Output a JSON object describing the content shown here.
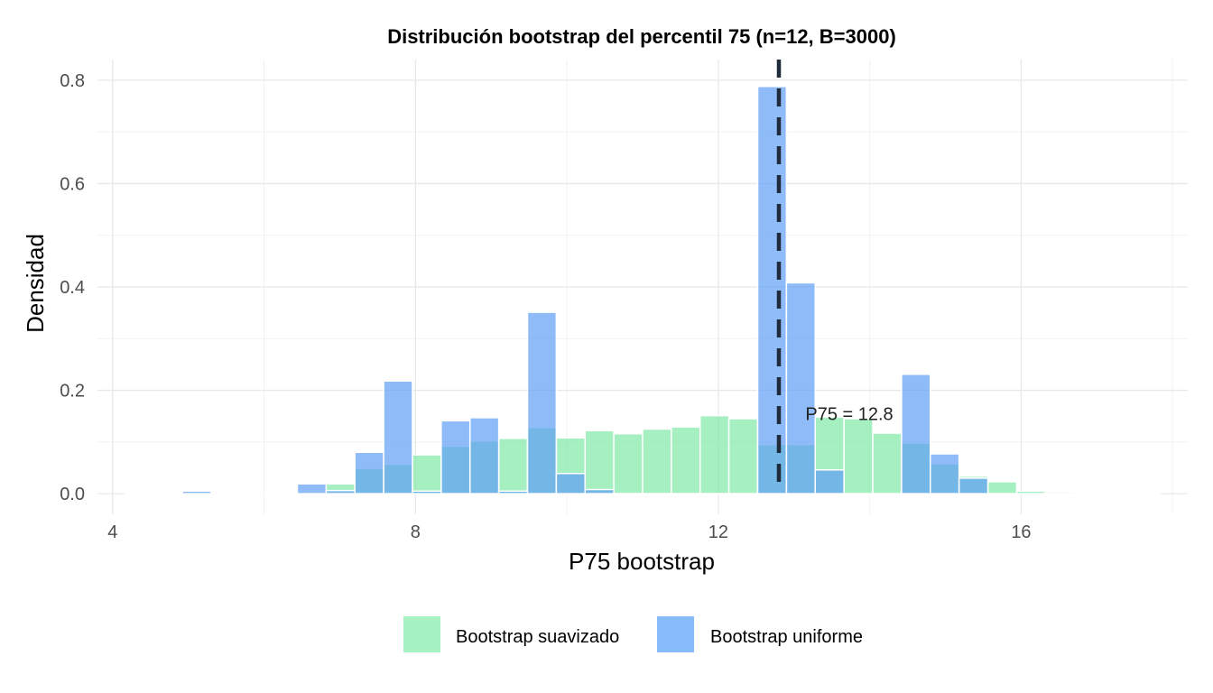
{
  "chart_data": {
    "type": "bar",
    "title": "Distribución bootstrap del percentil 75 (n=12, B=3000)",
    "xlabel": "P75 bootstrap",
    "ylabel": "Densidad",
    "xlim": [
      3.8,
      18.2
    ],
    "ylim": [
      -0.04,
      0.84
    ],
    "x_ticks": [
      4,
      8,
      12,
      16
    ],
    "x_tick_labels": [
      "4",
      "8",
      "12",
      "16"
    ],
    "y_ticks": [
      0.0,
      0.2,
      0.4,
      0.6,
      0.8
    ],
    "y_tick_labels": [
      "0.0",
      "0.2",
      "0.4",
      "0.6",
      "0.8"
    ],
    "grid": true,
    "bin_width": 0.38,
    "bin_centers": [
      4.35,
      4.73,
      5.11,
      5.49,
      5.87,
      6.25,
      6.63,
      7.01,
      7.39,
      7.77,
      8.15,
      8.53,
      8.91,
      9.29,
      9.67,
      10.05,
      10.43,
      10.81,
      11.19,
      11.57,
      11.95,
      12.33,
      12.71,
      13.09,
      13.47,
      13.85,
      14.23,
      14.61,
      14.99,
      15.37,
      15.75,
      16.13,
      16.51,
      16.89,
      17.27,
      17.65
    ],
    "series": [
      {
        "name": "Bootstrap suavizado",
        "color": "#7FE8A6",
        "values": [
          0,
          0,
          0,
          0,
          0,
          0,
          0.003,
          0.019,
          0.049,
          0.057,
          0.075,
          0.092,
          0.102,
          0.107,
          0.128,
          0.108,
          0.122,
          0.116,
          0.125,
          0.129,
          0.151,
          0.145,
          0.095,
          0.095,
          0.148,
          0.145,
          0.117,
          0.098,
          0.058,
          0.034,
          0.023,
          0.005,
          0.003,
          0,
          0,
          0
        ]
      },
      {
        "name": "Bootstrap uniforme",
        "color": "#5FA0F6",
        "values": [
          0,
          0,
          0.005,
          0,
          0,
          0.002,
          0.019,
          0.006,
          0.08,
          0.218,
          0.005,
          0.141,
          0.147,
          0.005,
          0.351,
          0.039,
          0.008,
          0,
          0,
          0,
          0,
          0,
          0.788,
          0.408,
          0.046,
          0,
          0,
          0.231,
          0.077,
          0.03,
          0,
          0,
          0,
          0,
          0,
          0
        ]
      }
    ],
    "vline": {
      "x": 12.8,
      "style": "dashed",
      "color": "#1F2A3A"
    },
    "annotation": {
      "text": "P75 = 12.8",
      "x": 13.15,
      "y": 0.155
    },
    "legend": {
      "position": "bottom",
      "items": [
        {
          "label": "Bootstrap suavizado",
          "color": "#7FE8A6"
        },
        {
          "label": "Bootstrap uniforme",
          "color": "#5FA0F6"
        }
      ]
    }
  }
}
